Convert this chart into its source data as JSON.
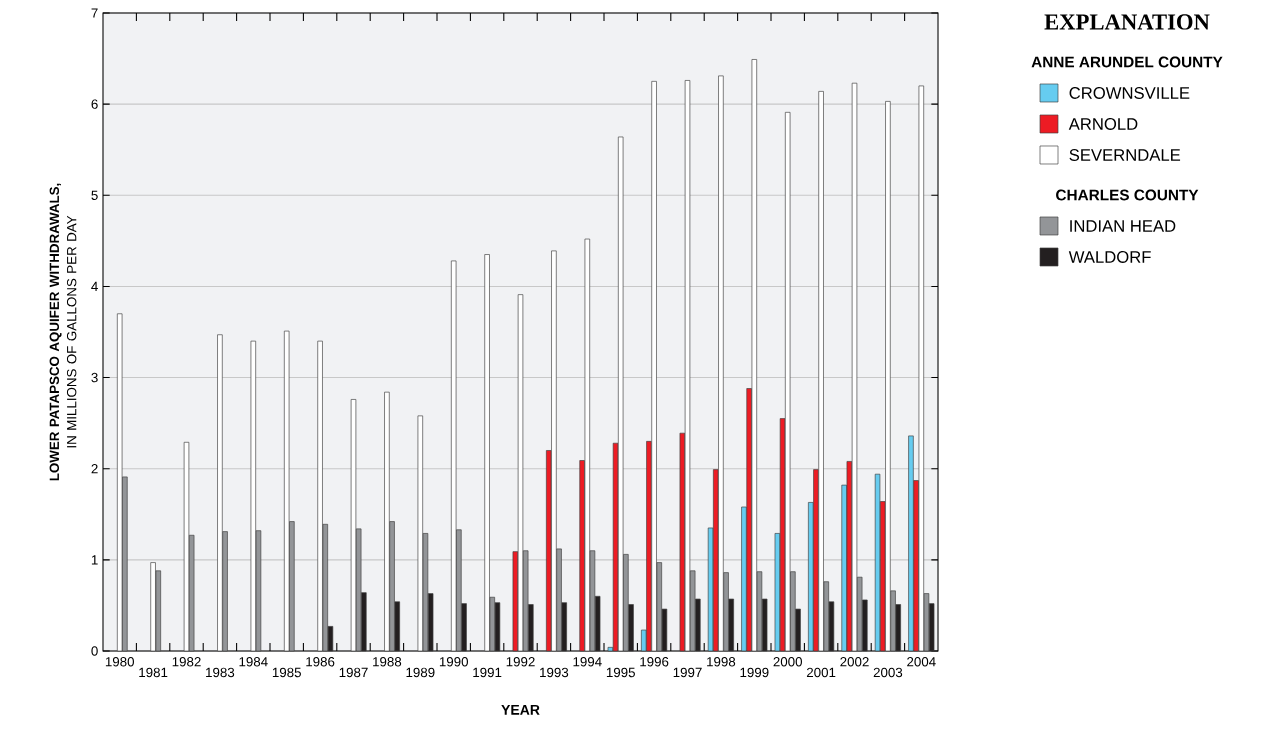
{
  "chart_data": {
    "type": "bar",
    "xlabel": "YEAR",
    "ylabel": "**LOWER PATAPSCO AQUIFER WITHDRAWALS,** IN MILLIONS OF GALLONS PER DAY",
    "legend_title": "EXPLANATION",
    "annotations": [
      "ANNE ARUNDEL COUNTY",
      "CHARLES COUNTY"
    ],
    "categories": [
      "1980",
      "1981",
      "1982",
      "1983",
      "1984",
      "1985",
      "1986",
      "1987",
      "1988",
      "1989",
      "1990",
      "1991",
      "1992",
      "1993",
      "1994",
      "1995",
      "1996",
      "1997",
      "1998",
      "1999",
      "2000",
      "2001",
      "2002",
      "2003",
      "2004"
    ],
    "series": [
      {
        "name": "CROWNSVILLE",
        "color": "#66ccf0",
        "values": [
          null,
          null,
          null,
          null,
          null,
          null,
          null,
          null,
          null,
          null,
          null,
          null,
          null,
          null,
          null,
          0.04,
          0.23,
          null,
          1.35,
          1.58,
          1.29,
          1.63,
          1.82,
          1.94,
          2.36
        ]
      },
      {
        "name": "ARNOLD",
        "color": "#ed1c24",
        "values": [
          null,
          null,
          null,
          null,
          null,
          null,
          null,
          null,
          null,
          null,
          null,
          null,
          1.09,
          2.2,
          2.09,
          2.28,
          2.3,
          2.39,
          1.99,
          2.88,
          2.55,
          1.99,
          2.08,
          1.64,
          1.87
        ]
      },
      {
        "name": "SEVERNDALE",
        "color": "#ffffff",
        "values": [
          3.7,
          0.97,
          2.29,
          3.47,
          3.4,
          3.51,
          3.4,
          2.76,
          2.84,
          2.58,
          4.28,
          4.35,
          3.91,
          4.39,
          4.52,
          5.64,
          6.25,
          6.26,
          6.31,
          6.49,
          5.91,
          6.14,
          6.23,
          6.03,
          6.2
        ]
      },
      {
        "name": "INDIAN HEAD",
        "color": "#939598",
        "values": [
          1.91,
          0.88,
          1.27,
          1.31,
          1.32,
          1.42,
          1.39,
          1.34,
          1.42,
          1.29,
          1.33,
          0.59,
          1.1,
          1.12,
          1.1,
          1.06,
          0.97,
          0.88,
          0.86,
          0.87,
          0.87,
          0.76,
          0.81,
          0.66,
          0.63
        ]
      },
      {
        "name": "WALDORF",
        "color": "#231f20",
        "values": [
          null,
          null,
          null,
          null,
          null,
          null,
          0.27,
          0.64,
          0.54,
          0.63,
          0.52,
          0.53,
          0.51,
          0.53,
          0.6,
          0.51,
          0.46,
          0.57,
          0.57,
          0.57,
          0.46,
          0.54,
          0.56,
          0.51,
          0.52
        ]
      }
    ],
    "ylim": [
      0,
      7
    ],
    "yticks": [
      0,
      1,
      2,
      3,
      4,
      5,
      6,
      7
    ],
    "grid": "y",
    "legend": "right"
  }
}
